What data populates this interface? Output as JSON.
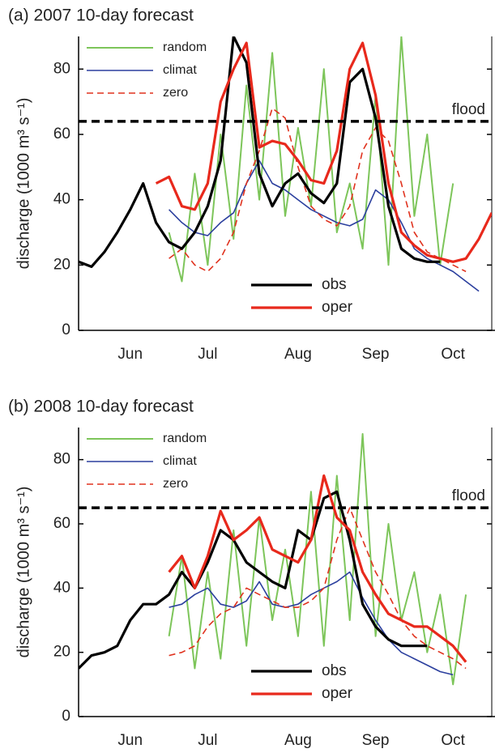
{
  "chart_data": [
    {
      "type": "line",
      "title": "(a) 2007 10-day forecast",
      "ylabel": "discharge (1000 m³ s⁻¹)",
      "categories": [
        null,
        null,
        null,
        null,
        "Jun",
        null,
        null,
        null,
        null,
        null,
        "Jul",
        null,
        null,
        null,
        null,
        null,
        null,
        "Aug",
        null,
        null,
        null,
        null,
        null,
        "Sep",
        null,
        null,
        null,
        null,
        null,
        "Oct",
        null,
        null,
        null
      ],
      "ylim": [
        0,
        90
      ],
      "yticks": [
        0,
        20,
        40,
        60,
        80
      ],
      "flood": {
        "value": 64,
        "label": "flood"
      },
      "series": [
        {
          "name": "random",
          "color": "#7dc55a",
          "values": [
            null,
            null,
            null,
            null,
            null,
            null,
            null,
            30,
            15,
            48,
            20,
            60,
            28,
            75,
            40,
            85,
            35,
            62,
            38,
            80,
            30,
            45,
            25,
            72,
            20,
            90,
            35,
            60,
            20,
            45,
            null,
            null,
            null
          ]
        },
        {
          "name": "climat",
          "color": "#2b3f9e",
          "values": [
            null,
            null,
            null,
            null,
            null,
            null,
            null,
            37,
            33,
            30,
            29,
            33,
            36,
            45,
            52,
            45,
            43,
            40,
            37,
            35,
            33,
            32,
            34,
            43,
            40,
            33,
            25,
            22,
            20,
            18,
            15,
            12,
            null
          ]
        },
        {
          "name": "zero",
          "color": "#e0321e",
          "dash": true,
          "values": [
            null,
            null,
            null,
            null,
            null,
            null,
            null,
            22,
            25,
            20,
            18,
            22,
            30,
            45,
            55,
            68,
            65,
            50,
            38,
            34,
            32,
            38,
            55,
            62,
            58,
            45,
            30,
            24,
            22,
            20,
            18,
            null,
            null
          ]
        },
        {
          "name": "obs",
          "color": "#000000",
          "values": [
            21,
            19.5,
            24,
            30,
            37,
            45,
            33,
            27,
            25,
            30,
            38,
            52,
            90,
            82,
            48,
            38,
            45,
            48,
            42,
            39,
            45,
            76,
            80,
            65,
            38,
            25,
            22,
            21,
            21,
            null,
            null,
            null,
            null
          ]
        },
        {
          "name": "oper",
          "color": "#e8291c",
          "values": [
            null,
            null,
            null,
            null,
            null,
            null,
            45,
            47,
            38,
            37,
            45,
            70,
            80,
            88,
            56,
            58,
            57,
            52,
            46,
            45,
            55,
            80,
            88,
            72,
            45,
            30,
            26,
            23,
            22,
            21,
            22,
            28,
            36
          ]
        }
      ]
    },
    {
      "type": "line",
      "title": "(b) 2008 10-day forecast",
      "ylabel": "discharge (1000 m³ s⁻¹)",
      "categories": [
        null,
        null,
        null,
        null,
        "Jun",
        null,
        null,
        null,
        null,
        null,
        "Jul",
        null,
        null,
        null,
        null,
        null,
        null,
        "Aug",
        null,
        null,
        null,
        null,
        null,
        "Sep",
        null,
        null,
        null,
        null,
        null,
        "Oct",
        null,
        null,
        null
      ],
      "ylim": [
        0,
        90
      ],
      "yticks": [
        0,
        20,
        40,
        60,
        80
      ],
      "flood": {
        "value": 65,
        "label": "flood"
      },
      "series": [
        {
          "name": "random",
          "color": "#7dc55a",
          "values": [
            null,
            null,
            null,
            null,
            null,
            null,
            null,
            25,
            50,
            15,
            45,
            18,
            58,
            22,
            62,
            30,
            52,
            25,
            70,
            22,
            75,
            30,
            88,
            25,
            60,
            30,
            45,
            20,
            38,
            10,
            38,
            null,
            null
          ]
        },
        {
          "name": "climat",
          "color": "#2b3f9e",
          "values": [
            null,
            null,
            null,
            null,
            null,
            null,
            null,
            34,
            35,
            38,
            40,
            35,
            34,
            36,
            42,
            35,
            34,
            35,
            38,
            40,
            42,
            45,
            37,
            30,
            24,
            20,
            18,
            16,
            14,
            13,
            null,
            null,
            null
          ]
        },
        {
          "name": "zero",
          "color": "#e0321e",
          "dash": true,
          "values": [
            null,
            null,
            null,
            null,
            null,
            null,
            null,
            19,
            20,
            22,
            28,
            32,
            34,
            40,
            38,
            36,
            34,
            34,
            36,
            40,
            55,
            65,
            55,
            45,
            38,
            30,
            25,
            22,
            20,
            18,
            15,
            null,
            null
          ]
        },
        {
          "name": "obs",
          "color": "#000000",
          "values": [
            15,
            19,
            20,
            22,
            30,
            35,
            35,
            38,
            45,
            40,
            48,
            58,
            55,
            48,
            45,
            42,
            40,
            58,
            55,
            68,
            70,
            55,
            35,
            28,
            24,
            22,
            22,
            22,
            null,
            null,
            null,
            null,
            null
          ]
        },
        {
          "name": "oper",
          "color": "#e8291c",
          "values": [
            null,
            null,
            null,
            null,
            null,
            null,
            null,
            45,
            50,
            40,
            50,
            64,
            55,
            58,
            62,
            52,
            50,
            48,
            55,
            75,
            62,
            58,
            45,
            38,
            32,
            30,
            28,
            28,
            25,
            22,
            17,
            null,
            null
          ]
        }
      ]
    }
  ]
}
